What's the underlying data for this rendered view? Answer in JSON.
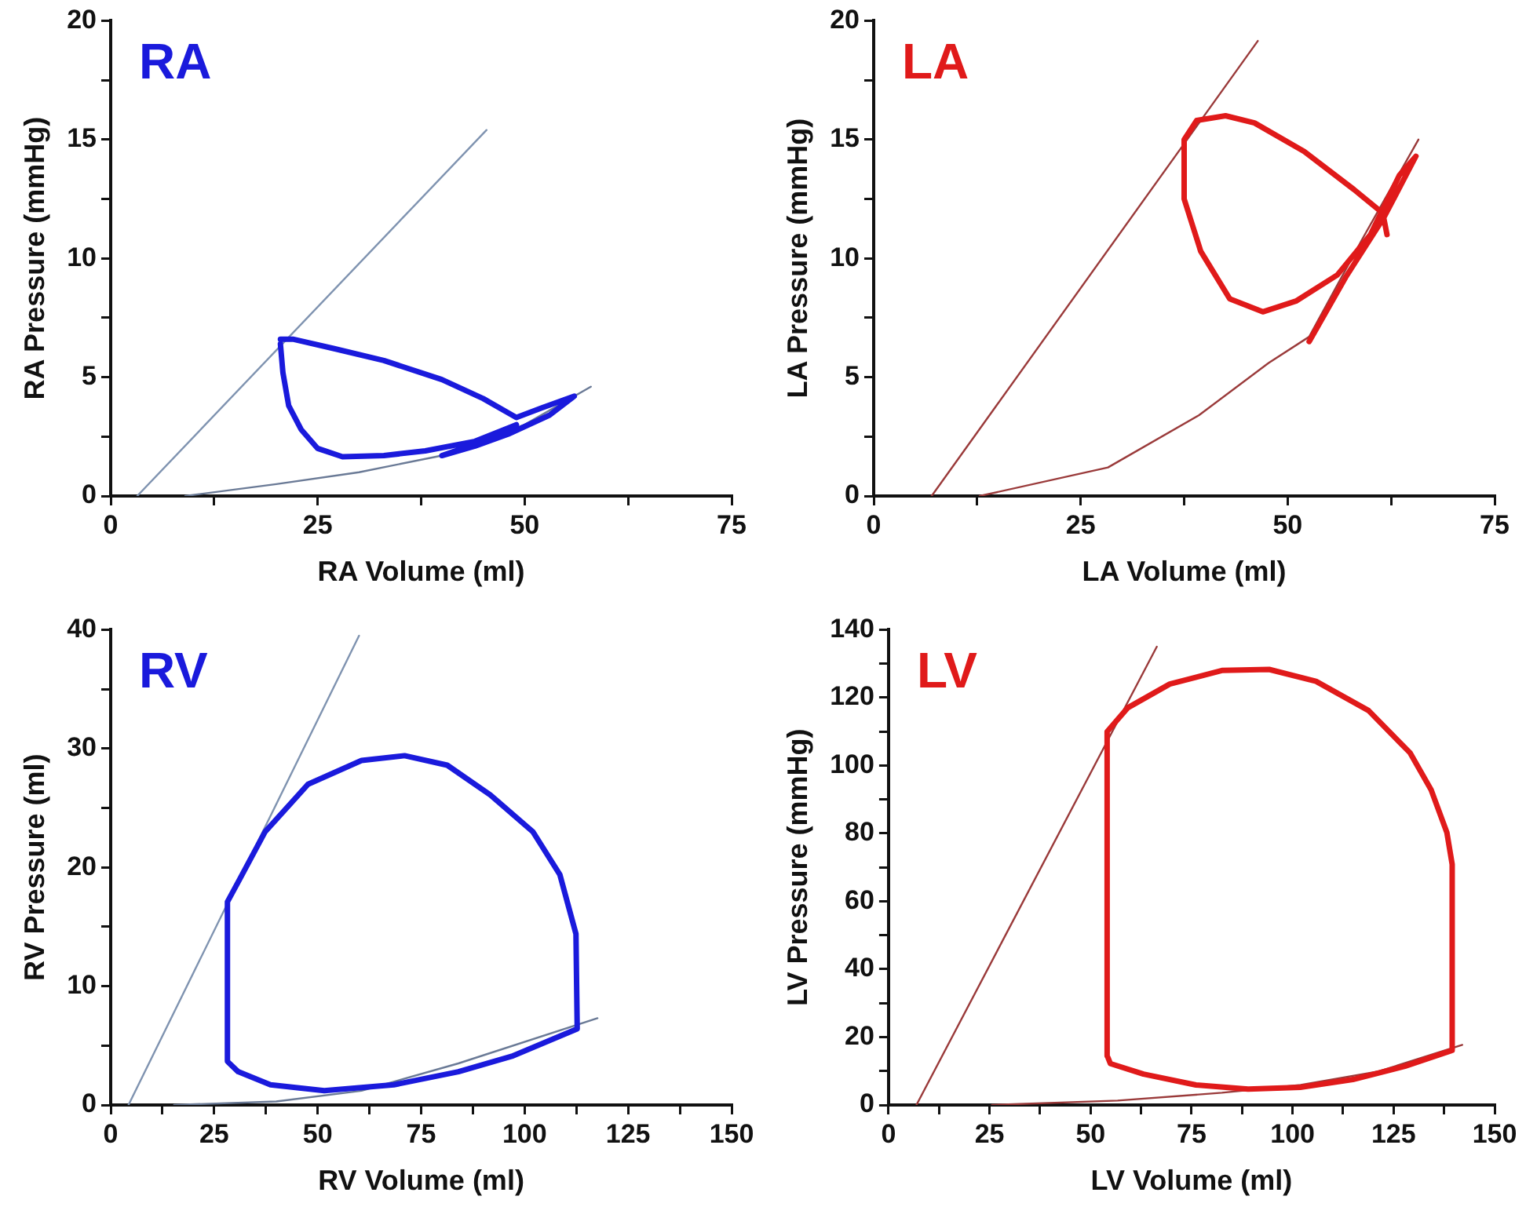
{
  "chart_data": [
    {
      "type": "line",
      "title": "RA",
      "xlabel": "RA Volume (ml)",
      "ylabel": "RA Pressure (mmHg)",
      "xlim": [
        0,
        75
      ],
      "ylim": [
        0,
        20
      ],
      "xticks": [
        0,
        {
          "value": 12.5,
          "label": null
        },
        25,
        {
          "value": 37.5,
          "label": null
        },
        50,
        {
          "value": 62.5,
          "label": null
        },
        75
      ],
      "yticks": [
        0,
        {
          "value": 2.5,
          "label": null
        },
        5,
        {
          "value": 7.5,
          "label": null
        },
        10,
        {
          "value": 12.5,
          "label": null
        },
        15,
        {
          "value": 17.5,
          "label": null
        },
        20
      ],
      "series": [
        {
          "color": "#1a1adc",
          "x": [
            20.5,
            22,
            27,
            33,
            40,
            45,
            49,
            52,
            56,
            53,
            48,
            44,
            40,
            45,
            49,
            44,
            38,
            33,
            28,
            25,
            23,
            21.5,
            20.8,
            20.5
          ],
          "values": [
            6.6,
            6.6,
            6.2,
            5.7,
            4.9,
            4.1,
            3.3,
            3.7,
            4.2,
            3.4,
            2.6,
            2.1,
            1.7,
            2.3,
            3.0,
            2.3,
            1.9,
            1.7,
            1.65,
            2.0,
            2.8,
            3.8,
            5.2,
            6.4
          ]
        },
        {
          "color": "#7f93b0",
          "x": [
            3.2,
            45.4
          ],
          "values": [
            0,
            15.4
          ]
        },
        {
          "color": "#6a7a96",
          "x": [
            9,
            20,
            30,
            40,
            50,
            58
          ],
          "values": [
            0,
            0.5,
            1.0,
            1.7,
            3.0,
            4.6
          ]
        }
      ]
    },
    {
      "type": "line",
      "title": "LA",
      "xlabel": "LA Volume (ml)",
      "ylabel": "LA Pressure (mmHg)",
      "xlim": [
        0,
        75
      ],
      "ylim": [
        0,
        20
      ],
      "xticks": [
        0,
        {
          "value": 12.5,
          "label": null
        },
        25,
        {
          "value": 37.5,
          "label": null
        },
        50,
        {
          "value": 62.5,
          "label": null
        },
        75
      ],
      "yticks": [
        0,
        {
          "value": 2.5,
          "label": null
        },
        5,
        {
          "value": 7.5,
          "label": null
        },
        10,
        {
          "value": 12.5,
          "label": null
        },
        15,
        {
          "value": 17.5,
          "label": null
        },
        20
      ],
      "series": [
        {
          "color": "#e01a1a",
          "x": [
            52.6,
            57,
            61.6,
            65.5,
            63.5,
            60,
            56,
            51,
            47,
            43,
            39.5,
            37.5,
            37.5,
            39,
            42.5,
            46,
            52,
            58,
            61.5,
            62
          ],
          "values": [
            6.5,
            9.2,
            11.7,
            14.3,
            13.5,
            11,
            9.3,
            8.2,
            7.75,
            8.3,
            10.3,
            12.5,
            15.0,
            15.8,
            16.0,
            15.7,
            14.5,
            12.9,
            11.9,
            11
          ]
        },
        {
          "color": "#9a3a3a",
          "x": [
            7,
            46.4
          ],
          "values": [
            0,
            19.15
          ]
        },
        {
          "color": "#9a3a3a",
          "x": [
            12.8,
            28.3,
            39.3,
            47.7,
            52.6,
            59,
            65.8
          ],
          "values": [
            0,
            1.2,
            3.4,
            5.6,
            6.7,
            10.8,
            15.0
          ]
        }
      ]
    },
    {
      "type": "line",
      "title": "RV",
      "xlabel": "RV Volume (ml)",
      "ylabel": "RV Pressure (ml)",
      "xlim": [
        0,
        150
      ],
      "ylim": [
        0,
        40
      ],
      "xticks": [
        0,
        {
          "value": 12.5,
          "label": null
        },
        25,
        {
          "value": 37.5,
          "label": null
        },
        50,
        {
          "value": 62.5,
          "label": null
        },
        75,
        {
          "value": 87.5,
          "label": null
        },
        100,
        {
          "value": 112.5,
          "label": null
        },
        125,
        {
          "value": 137.5,
          "label": null
        },
        150
      ],
      "yticks": [
        0,
        {
          "value": 5,
          "label": null
        },
        10,
        {
          "value": 15,
          "label": null
        },
        20,
        {
          "value": 25,
          "label": null
        },
        30,
        {
          "value": 35,
          "label": null
        },
        40
      ],
      "series": [
        {
          "color": "#1a1adc",
          "x": [
            28.2,
            28.2,
            31,
            37.3,
            47.7,
            60.6,
            71,
            81.3,
            91.7,
            102,
            108.5,
            112.4,
            112.7,
            96.9,
            84,
            68.4,
            51.6,
            38.6,
            30.8,
            28.4
          ],
          "values": [
            3.7,
            17.1,
            18.9,
            23,
            27,
            29,
            29.4,
            28.6,
            26.1,
            23,
            19.4,
            14.4,
            6.4,
            4.1,
            2.8,
            1.7,
            1.2,
            1.7,
            2.8,
            3.6
          ]
        },
        {
          "color": "#7f93b0",
          "x": [
            4.3,
            60
          ],
          "values": [
            0,
            39.5
          ]
        },
        {
          "color": "#6a7a96",
          "x": [
            15.3,
            40,
            60.6,
            84,
            117.6
          ],
          "values": [
            0,
            0.3,
            1.2,
            3.5,
            7.3
          ]
        }
      ]
    },
    {
      "type": "line",
      "title": "LV",
      "xlabel": "LV Volume (ml)",
      "ylabel": "LV Pressure (mmHg)",
      "xlim": [
        0,
        150
      ],
      "ylim": [
        0,
        140
      ],
      "xticks": [
        0,
        {
          "value": 12.5,
          "label": null
        },
        25,
        {
          "value": 37.5,
          "label": null
        },
        50,
        {
          "value": 62.5,
          "label": null
        },
        75,
        {
          "value": 87.5,
          "label": null
        },
        100,
        {
          "value": 112.5,
          "label": null
        },
        125,
        {
          "value": 137.5,
          "label": null
        },
        150
      ],
      "yticks": [
        0,
        {
          "value": 10,
          "label": null
        },
        20,
        {
          "value": 30,
          "label": null
        },
        40,
        {
          "value": 50,
          "label": null
        },
        60,
        {
          "value": 70,
          "label": null
        },
        80,
        {
          "value": 90,
          "label": null
        },
        100,
        {
          "value": 110,
          "label": null
        },
        120,
        {
          "value": 130,
          "label": null
        },
        140
      ],
      "series": [
        {
          "color": "#e01a1a",
          "x": [
            54.1,
            54.1,
            59.2,
            69.6,
            82.5,
            94.2,
            105.8,
            118.8,
            129.1,
            134.3,
            138.2,
            139.5,
            139.5,
            127.8,
            114.9,
            101.9,
            89,
            76.1,
            63.1,
            54.9,
            54.3
          ],
          "values": [
            14.5,
            110,
            117,
            124,
            128,
            128.3,
            124.8,
            116.2,
            103.7,
            92.8,
            80.2,
            70.9,
            16.1,
            11.4,
            7.5,
            5.2,
            4.7,
            5.9,
            9.1,
            12.2,
            14
          ]
        },
        {
          "color": "#9a3a3a",
          "x": [
            6.9,
            66.4
          ],
          "values": [
            0,
            135
          ]
        },
        {
          "color": "#9a3a3a",
          "x": [
            25.6,
            56.7,
            82.5,
            102,
            121.3,
            142
          ],
          "values": [
            0,
            1.3,
            3.6,
            5.9,
            9.9,
            17.7
          ]
        }
      ]
    }
  ]
}
